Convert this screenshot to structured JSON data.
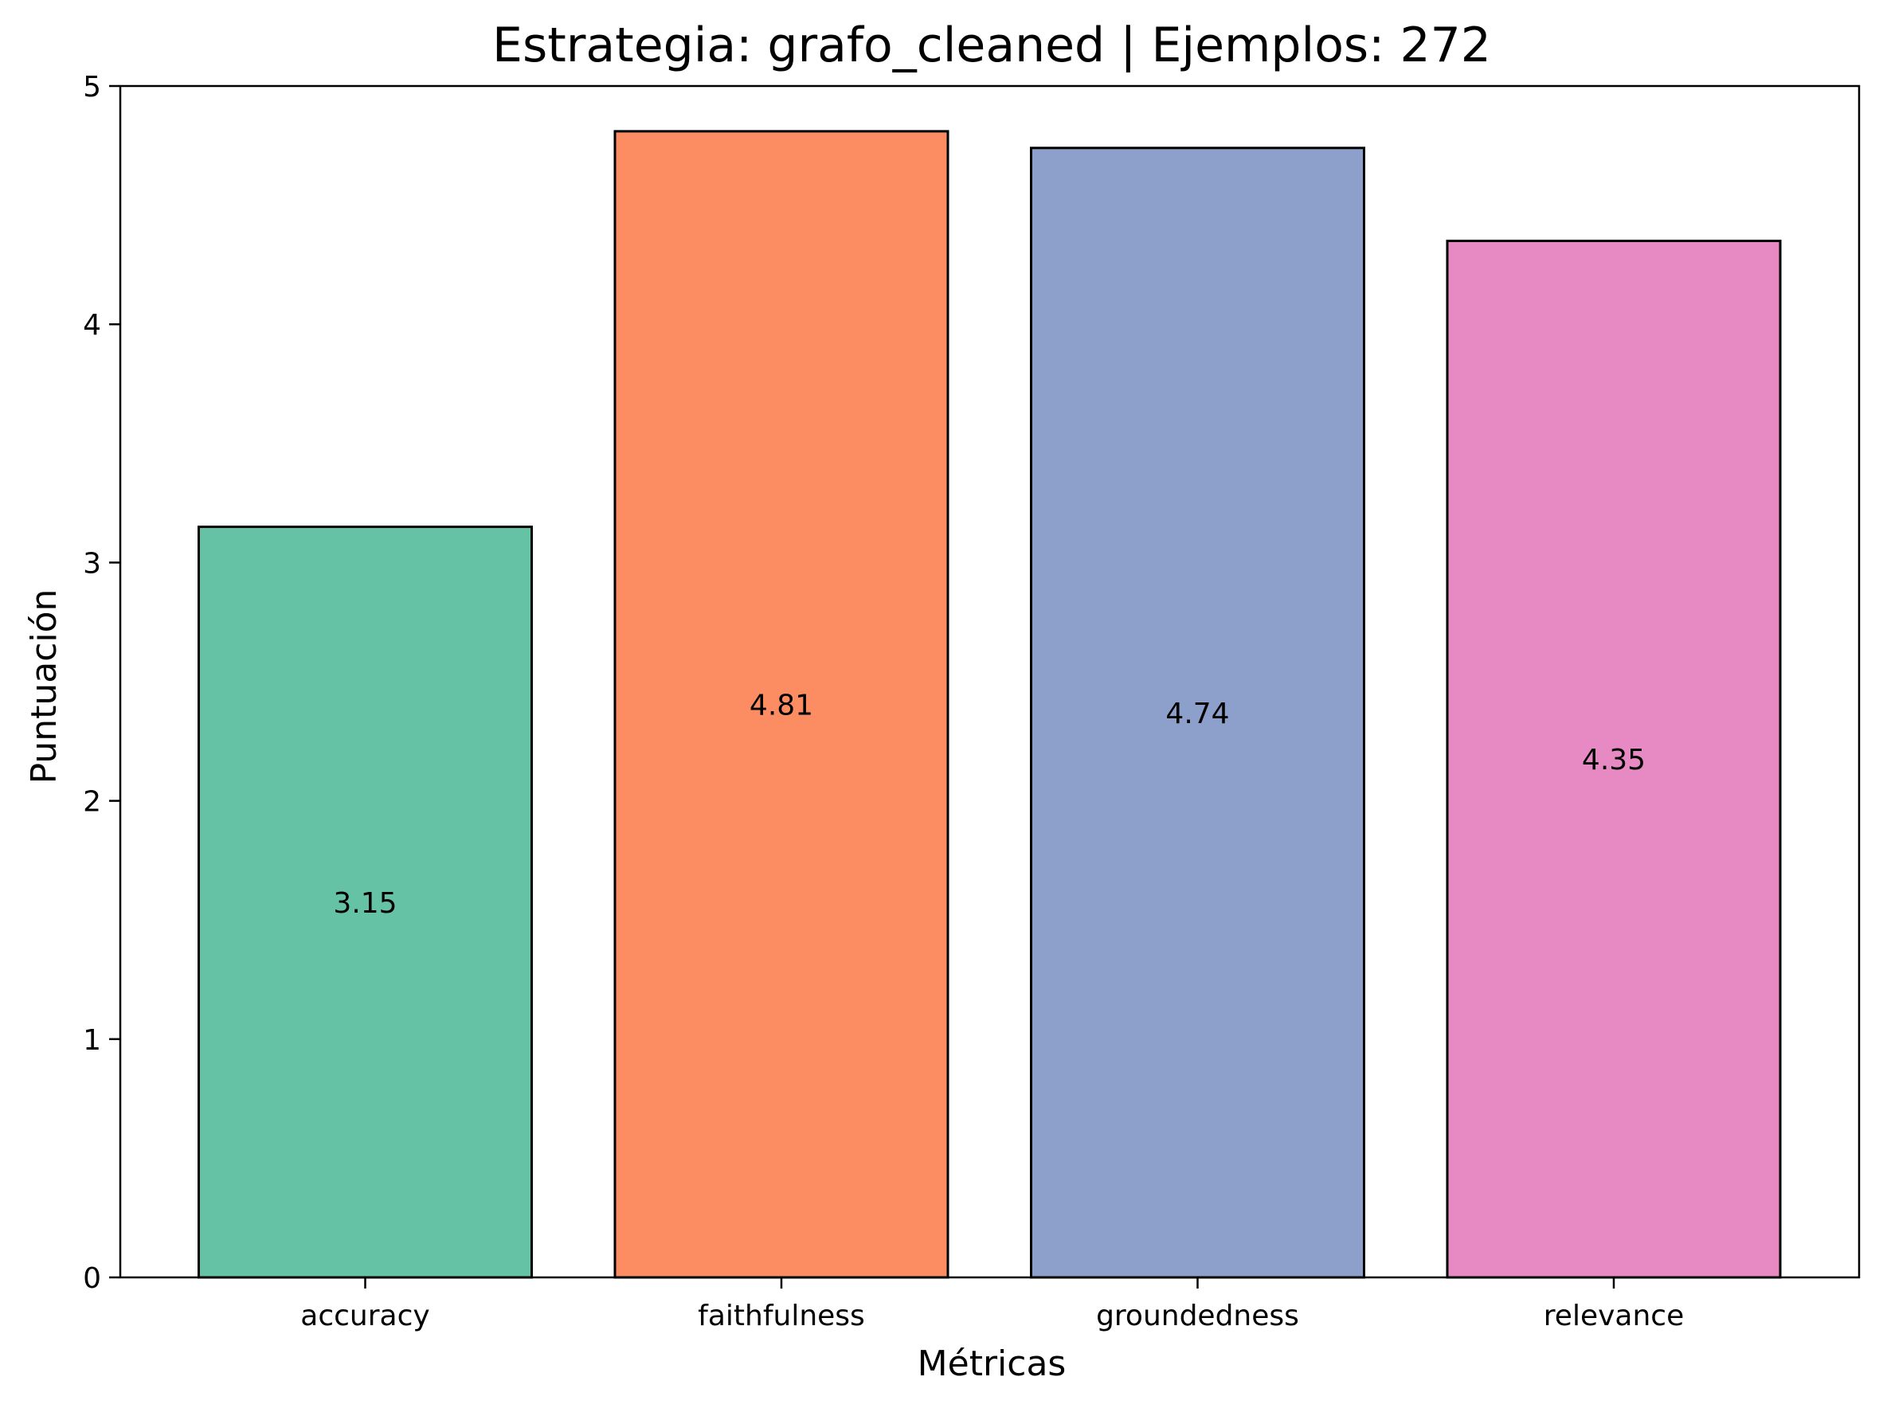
{
  "chart_data": {
    "type": "bar",
    "title": "Estrategia: grafo_cleaned | Ejemplos: 272",
    "xlabel": "Métricas",
    "ylabel": "Puntuación",
    "ylim": [
      0,
      5
    ],
    "yticks": [
      "0",
      "1",
      "2",
      "3",
      "4",
      "5"
    ],
    "categories": [
      "accuracy",
      "faithfulness",
      "groundedness",
      "relevance"
    ],
    "values": [
      3.15,
      4.81,
      4.74,
      4.35
    ],
    "value_labels": [
      "3.15",
      "4.81",
      "4.74",
      "4.35"
    ],
    "colors": [
      "#66c2a5",
      "#fc8d62",
      "#8da0cb",
      "#e78ac3"
    ],
    "grid": false,
    "legend": "none"
  }
}
